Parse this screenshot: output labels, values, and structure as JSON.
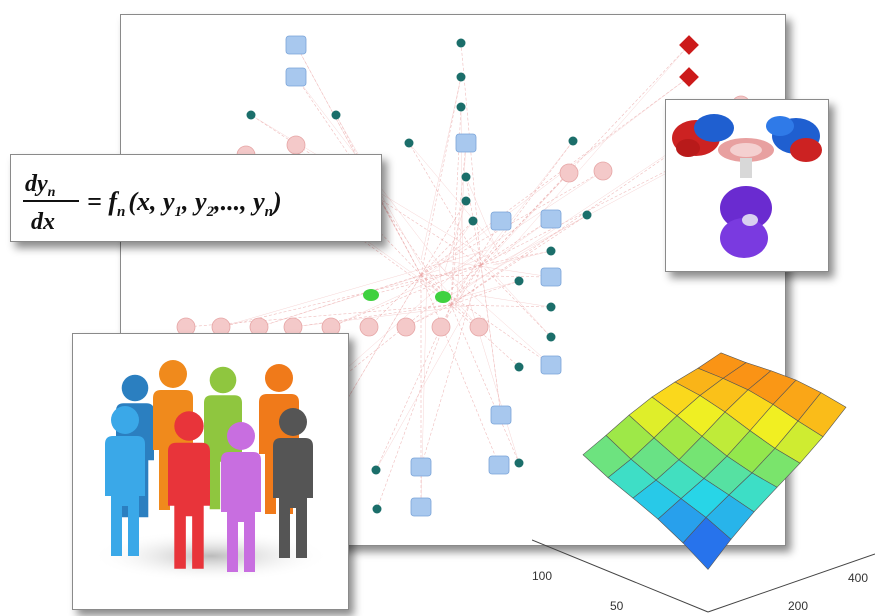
{
  "equation": {
    "numerator": "dy",
    "numerator_sub": "n",
    "denominator": "dx",
    "rhs": "= f",
    "rhs_sub": "n",
    "args": "(x, y",
    "arg1_sub": "1",
    "mid": ", y",
    "arg2_sub": "2",
    "tail": ",..., y",
    "argn_sub": "n",
    "close": ")"
  },
  "surface_axes": {
    "x_ticks": [
      "200",
      "400"
    ],
    "y_ticks": [
      "100",
      "50"
    ]
  },
  "colors": {
    "node_teal": "#1b6e6a",
    "node_green": "#3fd13f",
    "node_blue": "#a8c8ee",
    "node_pink": "#f4c9c9",
    "node_red": "#cc1a1a",
    "edge": "#e8a0a0"
  },
  "people_colors": [
    "#2b7fc0",
    "#f08a1c",
    "#8fc63f",
    "#f07a1a",
    "#3aa8e8",
    "#e8343a",
    "#c86ee0",
    "#555555"
  ]
}
